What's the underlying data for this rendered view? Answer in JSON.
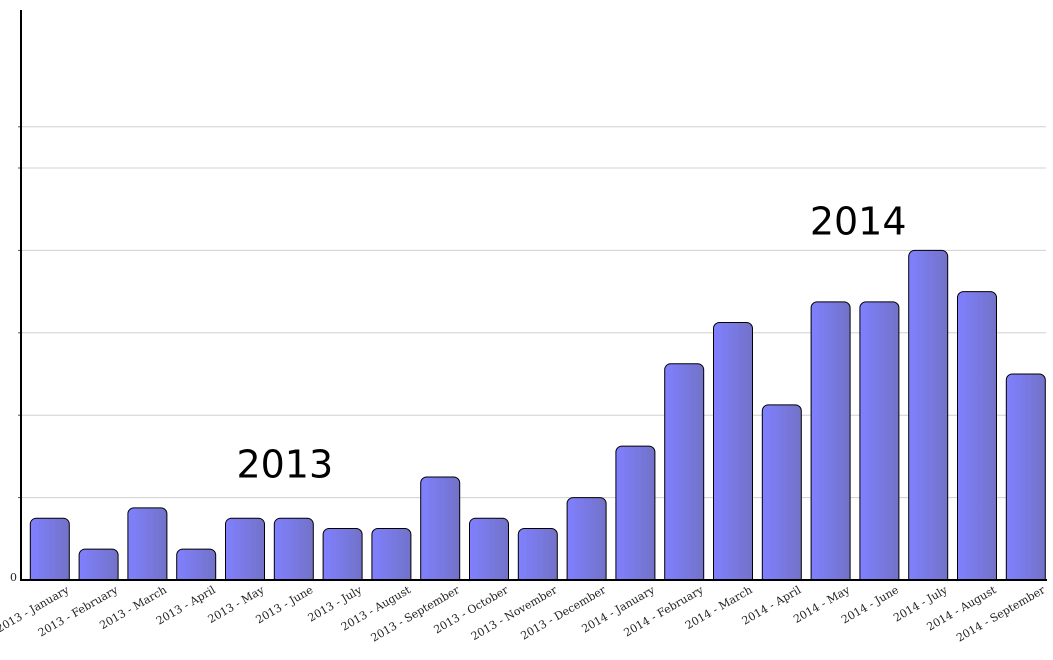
{
  "chart_data": {
    "type": "bar",
    "title": "",
    "xlabel": "",
    "ylabel": "",
    "ylim": [
      0,
      44
    ],
    "yticks": [
      0,
      8,
      16,
      24,
      32,
      40
    ],
    "ytick_labels": [
      "0",
      "",
      "",
      "",
      "",
      ""
    ],
    "grid": true,
    "categories": [
      "2013 - January",
      "2013 - February",
      "2013 - March",
      "2013 - April",
      "2013 - May",
      "2013 - June",
      "2013 - July",
      "2013 - August",
      "2013 - September",
      "2013 - October",
      "2013 - November",
      "2013 - December",
      "2014 - January",
      "2014 - February",
      "2014 - March",
      "2014 - April",
      "2014 - May",
      "2014 - June",
      "2014 - July",
      "2014 - August",
      "2014 - September"
    ],
    "values": [
      6,
      3,
      7,
      3,
      6,
      6,
      5,
      5,
      10,
      6,
      5,
      8,
      13,
      21,
      25,
      17,
      27,
      27,
      32,
      28,
      20
    ],
    "annotations": [
      {
        "text": "2013",
        "category_index": 5,
        "y": 11.2
      },
      {
        "text": "2014",
        "category_index": 16.75,
        "y": 34.8
      }
    ],
    "colors": {
      "bar_left": "#8080ff",
      "bar_right": "#7272c8",
      "bar_stroke": "#000000",
      "grid": "#d0d0d0",
      "axis": "#000000"
    }
  }
}
